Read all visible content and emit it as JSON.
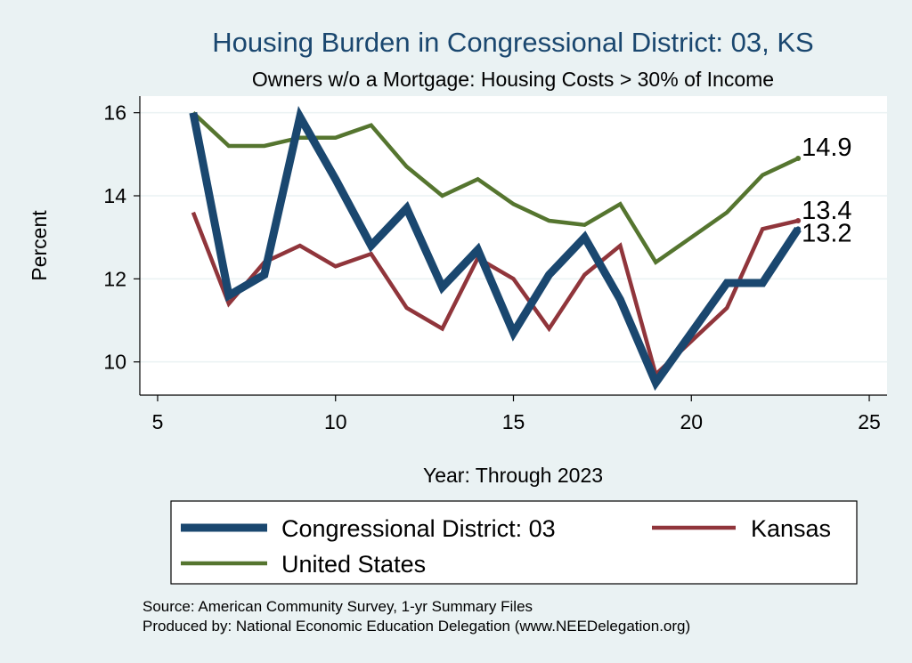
{
  "chart_data": {
    "type": "line",
    "title": "Housing Burden in Congressional District:  03, KS",
    "subtitle": "Owners w/o a Mortgage: Housing Costs > 30% of Income",
    "xlabel": "Year: Through 2023",
    "ylabel": "Percent",
    "xlim": [
      4.5,
      25.5
    ],
    "ylim": [
      9.2,
      16.4
    ],
    "xticks": [
      5,
      10,
      15,
      20,
      25
    ],
    "yticks": [
      10,
      12,
      14,
      16
    ],
    "x": [
      6,
      7,
      8,
      9,
      10,
      11,
      12,
      13,
      14,
      15,
      16,
      17,
      18,
      19,
      20,
      21,
      22,
      23
    ],
    "series": [
      {
        "name": "Congressional District:  03",
        "color": "#1a476f",
        "values": [
          16.0,
          11.6,
          12.1,
          15.9,
          14.4,
          12.8,
          13.7,
          11.8,
          12.7,
          10.7,
          12.1,
          13.0,
          11.5,
          9.5,
          10.7,
          11.9,
          11.9,
          13.2
        ],
        "end_label": "13.2"
      },
      {
        "name": "Kansas",
        "color": "#90353b",
        "values": [
          13.6,
          11.4,
          12.4,
          12.8,
          12.3,
          12.6,
          11.3,
          10.8,
          12.5,
          12.0,
          10.8,
          12.1,
          12.8,
          9.7,
          10.5,
          11.3,
          13.2,
          13.4
        ],
        "end_label": "13.4"
      },
      {
        "name": "United States",
        "color": "#55752f",
        "values": [
          16.0,
          15.2,
          15.2,
          15.4,
          15.4,
          15.7,
          14.7,
          14.0,
          14.4,
          13.8,
          13.4,
          13.3,
          13.8,
          12.4,
          13.0,
          13.6,
          14.5,
          14.9
        ],
        "end_label": "14.9"
      }
    ],
    "legend": {
      "position": "bottom",
      "rows": [
        [
          "Congressional District:  03",
          "Kansas"
        ],
        [
          "United States"
        ]
      ]
    },
    "source_lines": [
      "Source: American Community Survey, 1-yr Summary Files",
      "Produced by: National Economic Education Delegation (www.NEEDelegation.org)"
    ]
  }
}
